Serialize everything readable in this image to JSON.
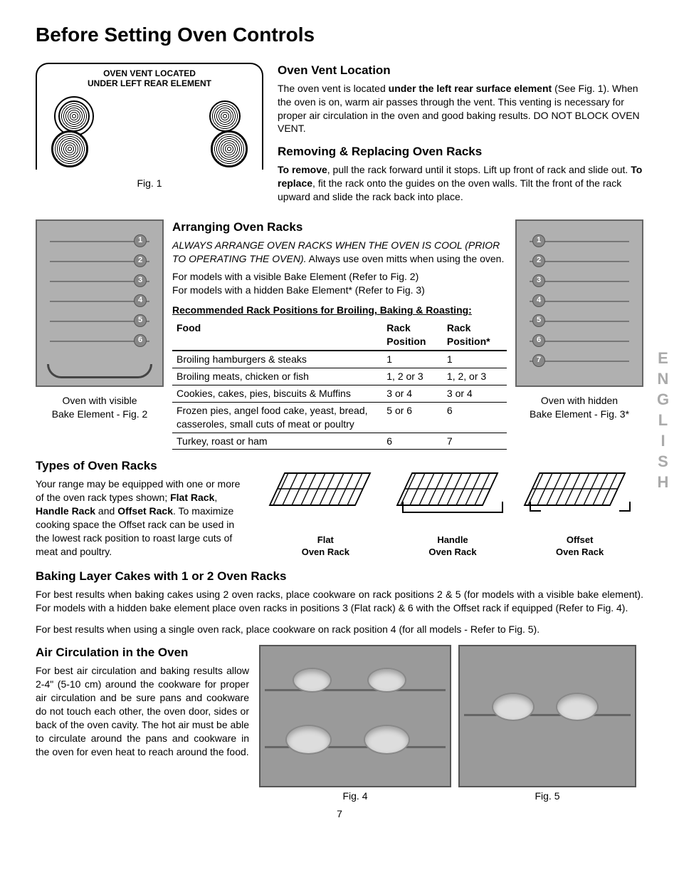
{
  "title": "Before Setting Oven Controls",
  "fig1": {
    "label_line1": "OVEN VENT LOCATED",
    "label_line2": "UNDER LEFT REAR ELEMENT",
    "caption": "Fig. 1"
  },
  "oven_vent": {
    "heading": "Oven Vent Location",
    "body_pre": "The oven vent is located ",
    "bold": "under the left rear surface element",
    "body_post": " (See Fig. 1). When the oven is on, warm air passes through the vent. This venting is necessary for proper air circulation in the oven and good baking results. DO NOT BLOCK OVEN VENT."
  },
  "removing": {
    "heading": "Removing & Replacing Oven Racks",
    "remove_bold": "To remove",
    "remove_text": ", pull the rack forward until it stops. Lift up front of rack and slide out. ",
    "replace_bold": "To replace",
    "replace_text": ", fit the rack onto the guides on the oven walls. Tilt the front of the rack upward and slide the rack back into place."
  },
  "arranging": {
    "heading": "Arranging Oven Racks",
    "italic": "ALWAYS ARRANGE OVEN RACKS WHEN THE OVEN IS COOL (PRIOR TO OPERATING THE OVEN).",
    "after_italic": " Always use oven mitts when using the oven.",
    "line2": "For models with a visible Bake Element (Refer to Fig. 2)",
    "line3": "For models with a hidden Bake Element* (Refer to Fig. 3)"
  },
  "fig2": {
    "caption_l1": "Oven with visible",
    "caption_l2": "Bake Element - Fig. 2",
    "rack_count": 6
  },
  "fig3": {
    "caption_l1": "Oven with hidden",
    "caption_l2": "Bake Element - Fig. 3*",
    "rack_count": 7
  },
  "side_label": "ENGLISH",
  "table": {
    "title": "Recommended Rack Positions for Broiling, Baking & Roasting:",
    "headers": [
      "Food",
      "Rack Position",
      "Rack Position*"
    ],
    "rows": [
      [
        "Broiling hamburgers & steaks",
        "1",
        "1"
      ],
      [
        "Broiling meats, chicken or fish",
        "1, 2 or 3",
        "1, 2, or 3"
      ],
      [
        "Cookies, cakes, pies, biscuits & Muffins",
        "3 or 4",
        "3 or 4"
      ],
      [
        "Frozen pies, angel food cake, yeast, bread, casseroles, small cuts of meat or poultry",
        "5 or 6",
        "6"
      ],
      [
        "Turkey, roast or ham",
        "6",
        "7"
      ]
    ]
  },
  "types": {
    "heading": "Types of Oven Racks",
    "pre": "Your range may be equipped with one or more of the oven rack types shown; ",
    "b1": "Flat Rack",
    "sep1": ", ",
    "b2": "Handle Rack",
    "sep2": " and ",
    "b3": "Offset Rack",
    "post": ". To maximize cooking space the Offset rack can be used in the lowest rack position to roast large cuts of meat and poultry.",
    "racks": [
      {
        "l1": "Flat",
        "l2": "Oven Rack"
      },
      {
        "l1": "Handle",
        "l2": "Oven Rack"
      },
      {
        "l1": "Offset",
        "l2": "Oven Rack"
      }
    ]
  },
  "baking": {
    "heading": "Baking Layer Cakes with 1 or 2 Oven Racks",
    "p1": "For best results when baking cakes using 2 oven racks, place cookware on rack positions 2 & 5 (for models with a visible bake element). For models with a hidden bake element place oven racks in positions 3 (Flat rack) & 6 with the Offset rack if equipped (Refer to Fig. 4).",
    "p2": "For best results when using a single oven rack, place cookware on rack position 4 (for all models - Refer to Fig. 5)."
  },
  "air": {
    "heading": "Air Circulation in the Oven",
    "body": "For best air circulation and baking results allow 2-4\" (5-10 cm) around the cookware for proper air circulation and be sure pans and cookware do not touch each other, the oven door, sides or back of the oven cavity. The hot air must be able to circulate around the pans and cookware in the oven for even heat to reach around the food."
  },
  "fig4_caption": "Fig. 4",
  "fig5_caption": "Fig. 5",
  "page_number": "7",
  "colors": {
    "text": "#000000",
    "bg": "#ffffff",
    "photo_bg": "#9a9a9a",
    "gray": "#888888"
  }
}
